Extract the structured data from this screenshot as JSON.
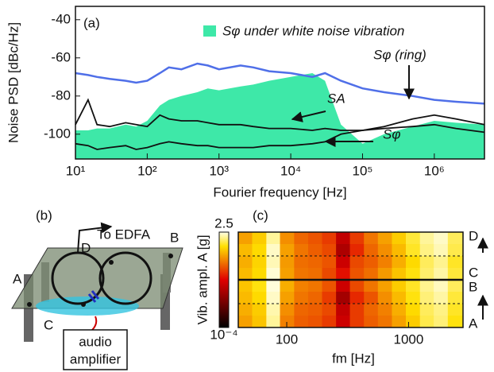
{
  "chart_data": [
    {
      "type": "line",
      "panel_label": "(a)",
      "x_label": "Fourier frequency [Hz]",
      "y_label": "Noise PSD [dBc/Hz]",
      "log_x": true,
      "xlim": [
        10,
        5000000
      ],
      "ylim": [
        -113,
        -33
      ],
      "xticks": [
        {
          "value": 10,
          "label": "10¹"
        },
        {
          "value": 100,
          "label": "10²"
        },
        {
          "value": 1000,
          "label": "10³"
        },
        {
          "value": 10000,
          "label": "10⁴"
        },
        {
          "value": 100000,
          "label": "10⁵"
        },
        {
          "value": 1000000,
          "label": "10⁶"
        }
      ],
      "yticks": [
        -40,
        -60,
        -80,
        -100
      ],
      "x": [
        10,
        15,
        20,
        30,
        50,
        70,
        100,
        150,
        200,
        300,
        500,
        700,
        1000,
        2000,
        3000,
        5000,
        10000,
        20000,
        30000,
        50000,
        100000,
        200000,
        500000,
        1000000,
        2000000,
        5000000
      ],
      "series": [
        {
          "name": "Sφ under white noise vibration",
          "color": "#3ee8a8",
          "fill": true,
          "values": [
            -98,
            -98,
            -97,
            -97,
            -95,
            -96,
            -93,
            -85,
            -82,
            -80,
            -78,
            -76,
            -77,
            -75,
            -74,
            -72,
            -70,
            -68,
            -72,
            -95,
            -105,
            -100,
            -96,
            -93,
            -94,
            -95
          ]
        },
        {
          "name": "Sφ (ring)",
          "color": "#4f6fe8",
          "values": [
            -68,
            -69,
            -70,
            -71,
            -72,
            -73,
            -72,
            -68,
            -65,
            -66,
            -63,
            -64,
            -66,
            -64,
            -65,
            -67,
            -68,
            -70,
            -68,
            -72,
            -76,
            -78,
            -80,
            -82,
            -83,
            -84
          ]
        },
        {
          "name": "SA",
          "color": "#111111",
          "values": [
            -95,
            -82,
            -95,
            -96,
            -94,
            -95,
            -96,
            -90,
            -92,
            -93,
            -93,
            -94,
            -95,
            -95,
            -96,
            -97,
            -97,
            -98,
            -97,
            -98,
            -98,
            -96,
            -92,
            -90,
            -92,
            -95
          ]
        },
        {
          "name": "Sφ",
          "color": "#111111",
          "values": [
            -105,
            -106,
            -108,
            -107,
            -106,
            -108,
            -107,
            -105,
            -104,
            -105,
            -106,
            -106,
            -107,
            -107,
            -107,
            -106,
            -106,
            -105,
            -104,
            -100,
            -98,
            -97,
            -96,
            -95,
            -97,
            -99
          ]
        }
      ]
    },
    {
      "type": "heatmap",
      "panel_label": "(c)",
      "x_label": "fm [Hz]",
      "colorbar_label": "Vib. ampl. A [g]",
      "log_x": true,
      "xlim": [
        40,
        2800
      ],
      "xticks": [
        100,
        1000
      ],
      "zlim": [
        0.0001,
        2.5
      ],
      "zticks": [
        2.5,
        {
          "value": 0.0001,
          "label": "10⁻⁴"
        }
      ],
      "row_labels": [
        "D",
        "C",
        "B",
        "A"
      ],
      "x_bins": [
        40,
        52,
        68,
        88,
        115,
        150,
        195,
        254,
        330,
        430,
        560,
        730,
        950,
        1240,
        1610,
        2100,
        2800
      ],
      "values": [
        [
          0.2,
          0.4,
          1.5,
          0.15,
          0.08,
          0.06,
          0.04,
          0.008,
          0.04,
          0.1,
          0.2,
          0.4,
          0.8,
          1.5,
          2.0,
          1.0
        ],
        [
          0.3,
          0.5,
          2.0,
          0.2,
          0.1,
          0.07,
          0.05,
          0.005,
          0.03,
          0.08,
          0.15,
          0.3,
          0.7,
          1.3,
          1.8,
          0.9
        ],
        [
          0.25,
          0.45,
          1.8,
          0.18,
          0.09,
          0.08,
          0.06,
          0.01,
          0.05,
          0.07,
          0.12,
          0.25,
          0.5,
          1.0,
          1.4,
          0.7
        ],
        [
          0.3,
          0.5,
          2.2,
          0.2,
          0.1,
          0.09,
          0.05,
          0.02,
          0.06,
          0.09,
          0.18,
          0.35,
          0.6,
          1.1,
          1.6,
          0.8
        ],
        [
          0.35,
          0.6,
          2.3,
          0.25,
          0.12,
          0.1,
          0.06,
          0.01,
          0.05,
          0.1,
          0.2,
          0.4,
          0.7,
          1.4,
          1.9,
          1.0
        ],
        [
          0.3,
          0.5,
          2.0,
          0.2,
          0.1,
          0.08,
          0.04,
          0.004,
          0.03,
          0.06,
          0.15,
          0.3,
          0.6,
          1.2,
          1.6,
          0.8
        ],
        [
          0.25,
          0.4,
          1.7,
          0.15,
          0.08,
          0.07,
          0.05,
          0.008,
          0.04,
          0.08,
          0.12,
          0.25,
          0.5,
          1.0,
          1.3,
          0.7
        ],
        [
          0.2,
          0.35,
          1.5,
          0.12,
          0.07,
          0.06,
          0.04,
          0.01,
          0.04,
          0.07,
          0.1,
          0.2,
          0.4,
          0.9,
          1.2,
          0.6
        ]
      ]
    }
  ],
  "diagram": {
    "panel_label": "(b)",
    "fiber_label": "To EDFA",
    "points": [
      "D",
      "B",
      "A",
      "C"
    ],
    "amplifier": [
      "audio",
      "amplifier"
    ]
  }
}
